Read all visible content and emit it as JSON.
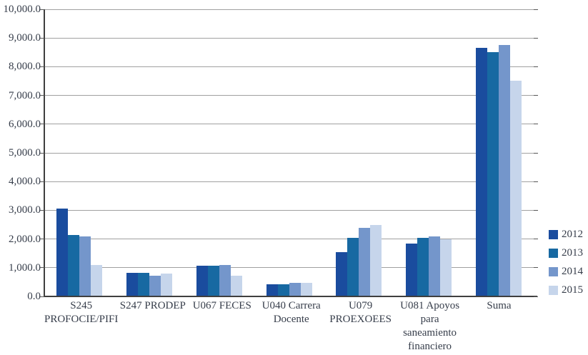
{
  "chart_data": {
    "type": "bar",
    "title": "",
    "xlabel": "",
    "ylabel": "",
    "categories": [
      "S245 PROFOCIE/PIFI",
      "S247 PRODEP",
      "U067 FECES",
      "U040 Carrera Docente",
      "U079 PROEXOEES",
      "U081 Apoyos para saneamiento financiero",
      "Suma"
    ],
    "category_label_lines": [
      [
        "S245",
        "PROFOCIE/PIFI"
      ],
      [
        "S247 PRODEP"
      ],
      [
        "U067 FECES"
      ],
      [
        "U040 Carrera",
        "Docente"
      ],
      [
        "U079",
        "PROEXOEES"
      ],
      [
        "U081 Apoyos",
        "para",
        "saneamiento",
        "financiero"
      ],
      [
        "Suma"
      ]
    ],
    "series": [
      {
        "name": "2012",
        "color": "#1A4C9E",
        "values": [
          3050,
          820,
          1070,
          430,
          1550,
          1850,
          8650
        ]
      },
      {
        "name": "2013",
        "color": "#1769A2",
        "values": [
          2150,
          830,
          1070,
          430,
          2050,
          2050,
          8500
        ]
      },
      {
        "name": "2014",
        "color": "#7496CB",
        "values": [
          2100,
          720,
          1090,
          480,
          2400,
          2100,
          8750
        ]
      },
      {
        "name": "2015",
        "color": "#C6D5EB",
        "values": [
          1100,
          800,
          720,
          470,
          2480,
          2000,
          7520
        ]
      }
    ],
    "ylim": [
      0,
      10000
    ],
    "ytick_step": 1000,
    "ytick_labels": [
      "0.0",
      "1,000.0",
      "2,000.0",
      "3,000.0",
      "4,000.0",
      "5,000.0",
      "6,000.0",
      "7,000.0",
      "8,000.0",
      "9,000.0",
      "10,000.0"
    ],
    "grid": true,
    "legend_position": "right"
  }
}
